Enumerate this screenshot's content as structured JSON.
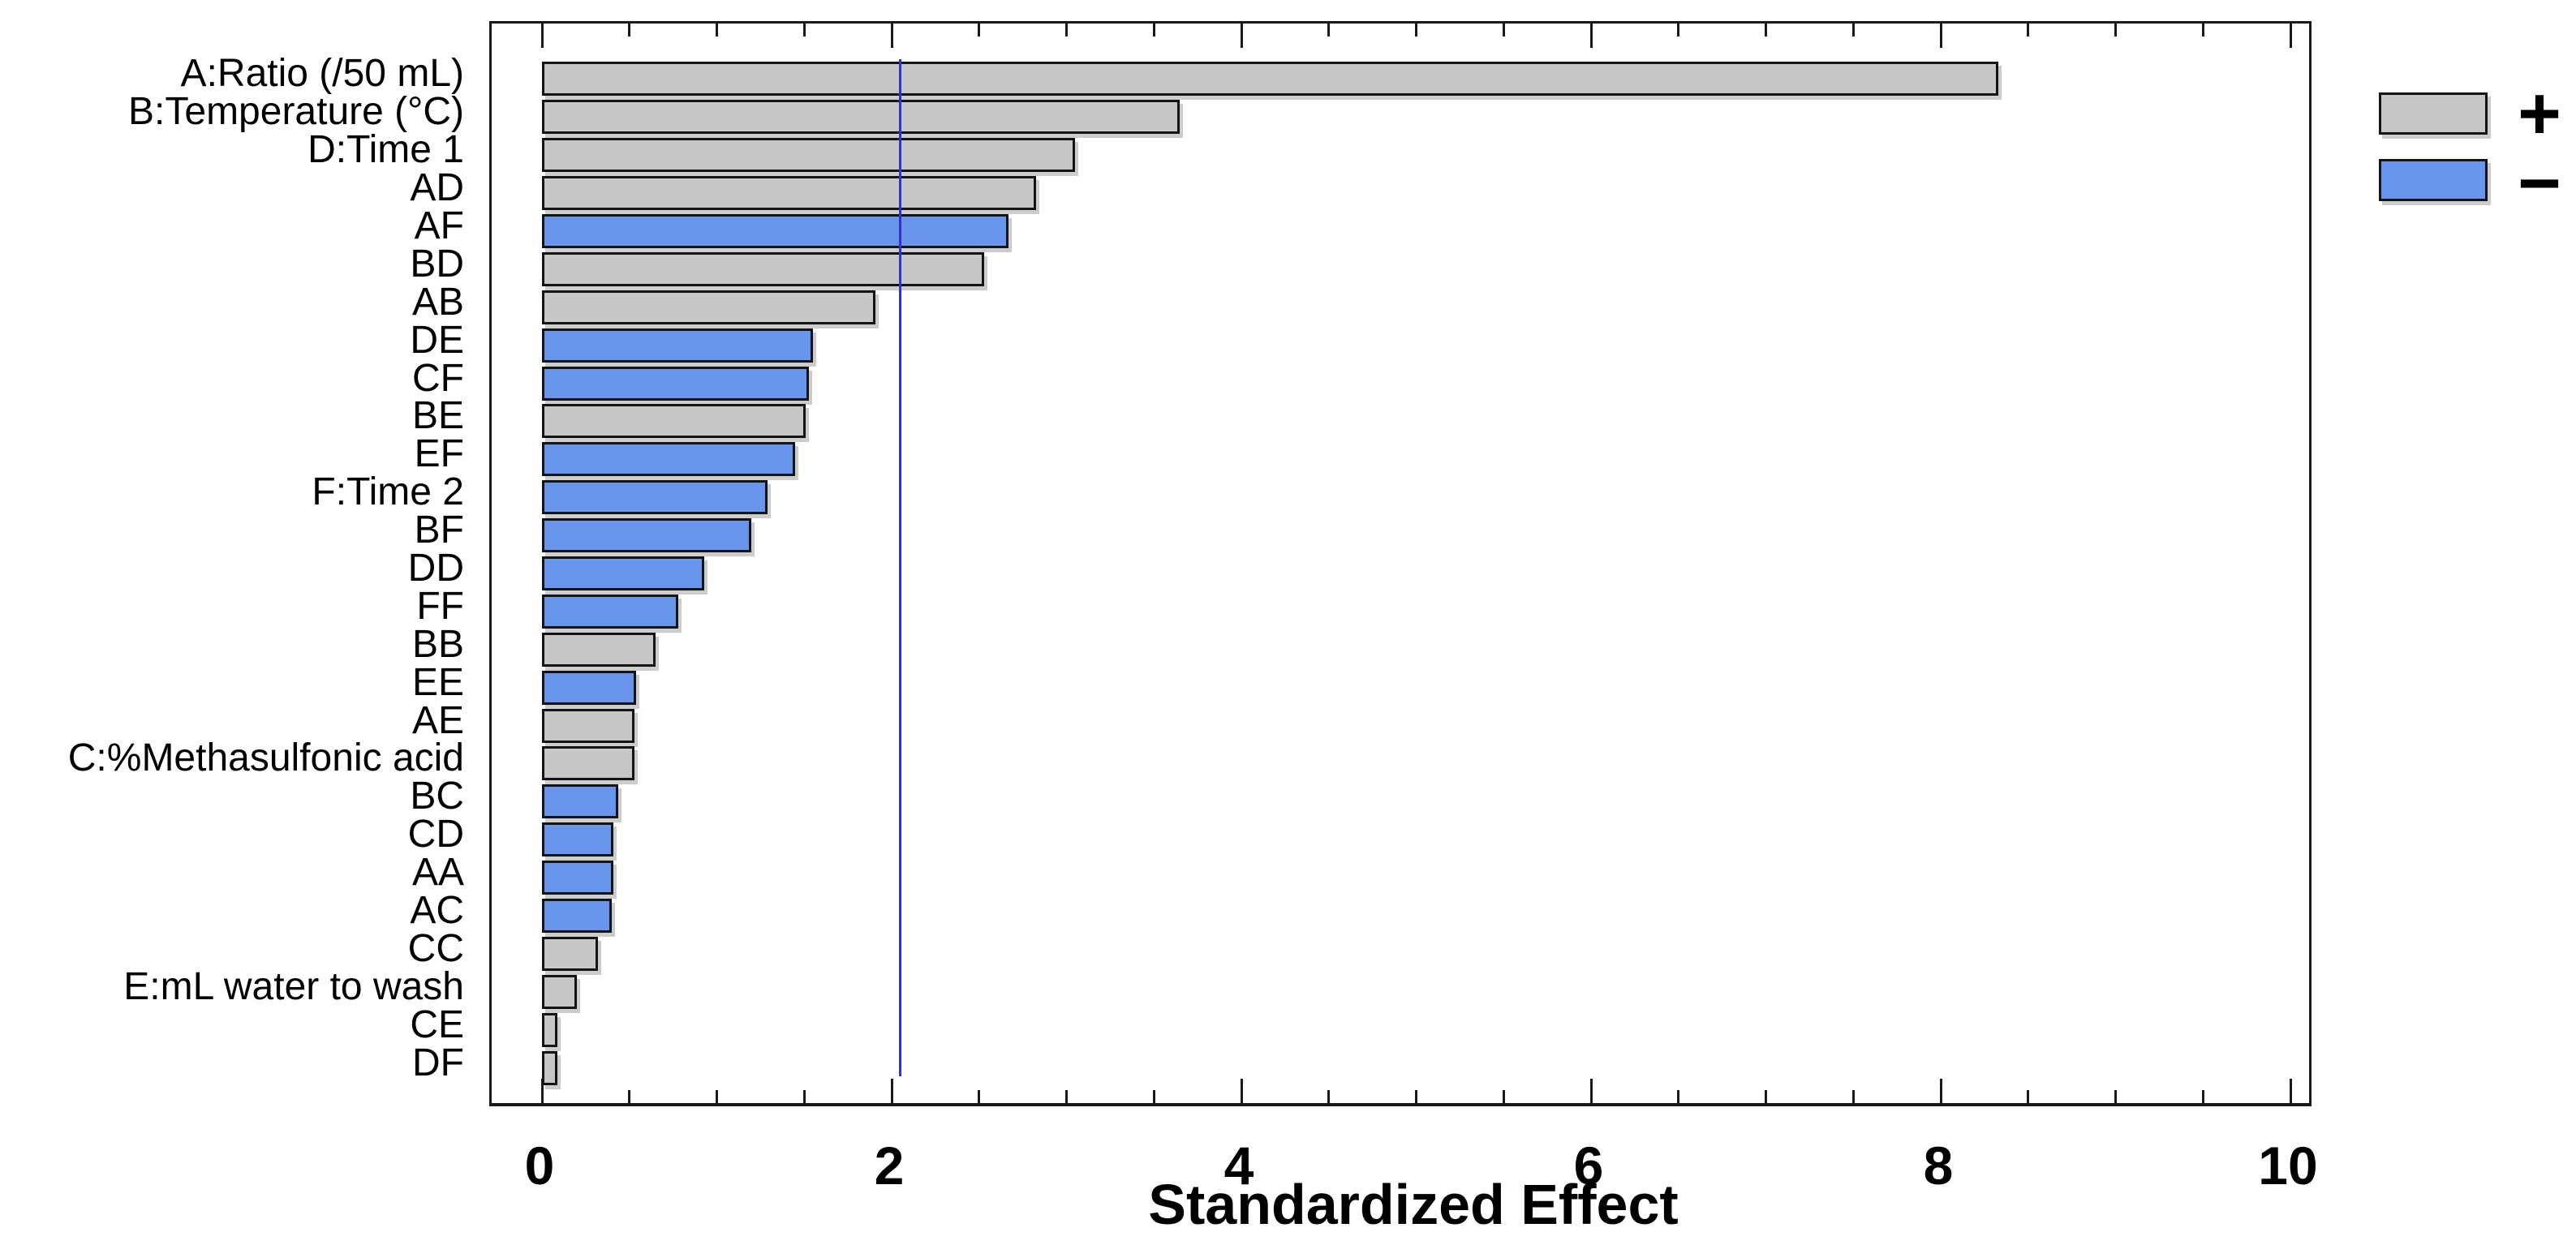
{
  "colors": {
    "positive_bar": "#C6C6C6",
    "negative_bar": "#6994EB",
    "bar_border": "#141414",
    "frame": "#1a1a1a",
    "reference_line": "#3333CC",
    "text": "#000000",
    "background": "#FFFFFF"
  },
  "chart_data": {
    "type": "bar",
    "orientation": "horizontal",
    "title": "",
    "xlabel": "Standardized Effect",
    "ylabel": "",
    "xlim": [
      0,
      10.1
    ],
    "x_major_ticks": [
      0,
      2,
      4,
      6,
      8,
      10
    ],
    "x_major_tick_labels": [
      "0",
      "2",
      "4",
      "6",
      "8",
      "10"
    ],
    "x_minor_tick_step": 0.5,
    "grid": false,
    "reference_line_x": 2.05,
    "legend_position": "top-right",
    "legend": [
      {
        "label": "+",
        "color": "#C6C6C6"
      },
      {
        "label": "−",
        "color": "#6994EB"
      }
    ],
    "bars": [
      {
        "label": "A:Ratio (/50 mL)",
        "value": 8.3,
        "sign": "+"
      },
      {
        "label": "B:Temperature (°C)",
        "value": 3.62,
        "sign": "+"
      },
      {
        "label": "D:Time 1",
        "value": 3.02,
        "sign": "+"
      },
      {
        "label": "AD",
        "value": 2.8,
        "sign": "+"
      },
      {
        "label": "AF",
        "value": 2.64,
        "sign": "−"
      },
      {
        "label": "BD",
        "value": 2.5,
        "sign": "+"
      },
      {
        "label": "AB",
        "value": 1.88,
        "sign": "+"
      },
      {
        "label": "DE",
        "value": 1.52,
        "sign": "−"
      },
      {
        "label": "CF",
        "value": 1.5,
        "sign": "−"
      },
      {
        "label": "BE",
        "value": 1.48,
        "sign": "+"
      },
      {
        "label": "EF",
        "value": 1.42,
        "sign": "−"
      },
      {
        "label": "F:Time 2",
        "value": 1.26,
        "sign": "−"
      },
      {
        "label": "BF",
        "value": 1.17,
        "sign": "−"
      },
      {
        "label": "DD",
        "value": 0.9,
        "sign": "−"
      },
      {
        "label": "FF",
        "value": 0.75,
        "sign": "−"
      },
      {
        "label": "BB",
        "value": 0.62,
        "sign": "+"
      },
      {
        "label": "EE",
        "value": 0.51,
        "sign": "−"
      },
      {
        "label": "AE",
        "value": 0.5,
        "sign": "+"
      },
      {
        "label": "C:%Methasulfonic acid",
        "value": 0.5,
        "sign": "+"
      },
      {
        "label": "BC",
        "value": 0.41,
        "sign": "−"
      },
      {
        "label": "CD",
        "value": 0.38,
        "sign": "−"
      },
      {
        "label": "AA",
        "value": 0.38,
        "sign": "−"
      },
      {
        "label": "AC",
        "value": 0.37,
        "sign": "−"
      },
      {
        "label": "CC",
        "value": 0.29,
        "sign": "+"
      },
      {
        "label": "E:mL water to wash",
        "value": 0.17,
        "sign": "+"
      },
      {
        "label": "CE",
        "value": 0.06,
        "sign": "+"
      },
      {
        "label": "DF",
        "value": 0.06,
        "sign": "+"
      }
    ]
  }
}
